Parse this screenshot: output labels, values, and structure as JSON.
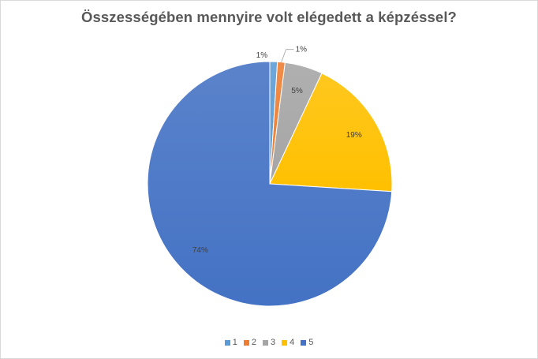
{
  "chart_data": {
    "type": "pie",
    "title": "Összességében mennyire volt elégedett a képzéssel?",
    "categories": [
      "1",
      "2",
      "3",
      "4",
      "5"
    ],
    "values": [
      1,
      1,
      5,
      19,
      74
    ],
    "data_labels": [
      "1%",
      "1%",
      "5%",
      "19%",
      "74%"
    ],
    "colors": [
      "#5b9bd5",
      "#ed7d31",
      "#a5a5a5",
      "#ffc000",
      "#4472c4"
    ],
    "legend_position": "bottom"
  }
}
